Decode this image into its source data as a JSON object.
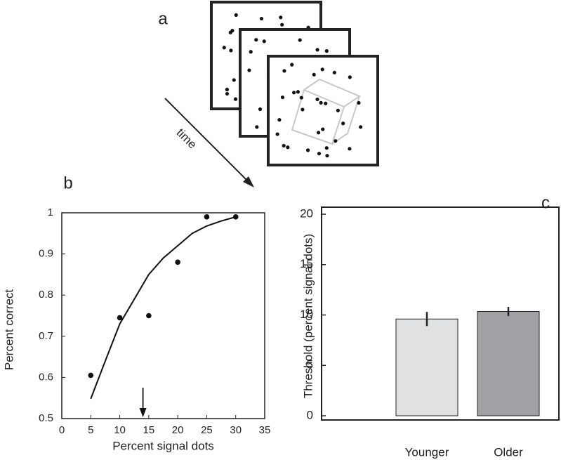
{
  "panel_labels": [
    "a",
    "b",
    "c"
  ],
  "time_label": "time",
  "chart_data": [
    {
      "type": "scatter",
      "xlabel": "Percent signal dots",
      "ylabel": "Percent correct",
      "x": [
        5,
        10,
        15,
        20,
        25,
        30
      ],
      "values": [
        0.605,
        0.745,
        0.75,
        0.88,
        0.99,
        0.99
      ],
      "color": "#111111",
      "fit": {
        "x": [
          5,
          7.5,
          10,
          12.5,
          15,
          17.5,
          20,
          22.5,
          25,
          27.5,
          30
        ],
        "values": [
          0.548,
          0.64,
          0.73,
          0.79,
          0.85,
          0.89,
          0.92,
          0.95,
          0.968,
          0.98,
          0.99
        ]
      },
      "threshold": 14,
      "xlim": [
        0,
        35
      ],
      "ylim": [
        0.5,
        1
      ],
      "xticks": [
        0,
        5,
        10,
        15,
        20,
        25,
        30,
        35
      ],
      "yticks": [
        0.5,
        0.6,
        0.7,
        0.8,
        0.9,
        1
      ]
    },
    {
      "type": "bar",
      "ylabel": "Threshold (percent signal dots)",
      "categories": [
        "Younger",
        "Older"
      ],
      "values": [
        9.6,
        10.35
      ],
      "errors": [
        0.7,
        0.45
      ],
      "colors": [
        "#e0e1e2",
        "#a0a1a4"
      ],
      "ylim": [
        0,
        20
      ],
      "yticks": [
        0,
        5,
        10,
        15,
        20
      ]
    }
  ]
}
